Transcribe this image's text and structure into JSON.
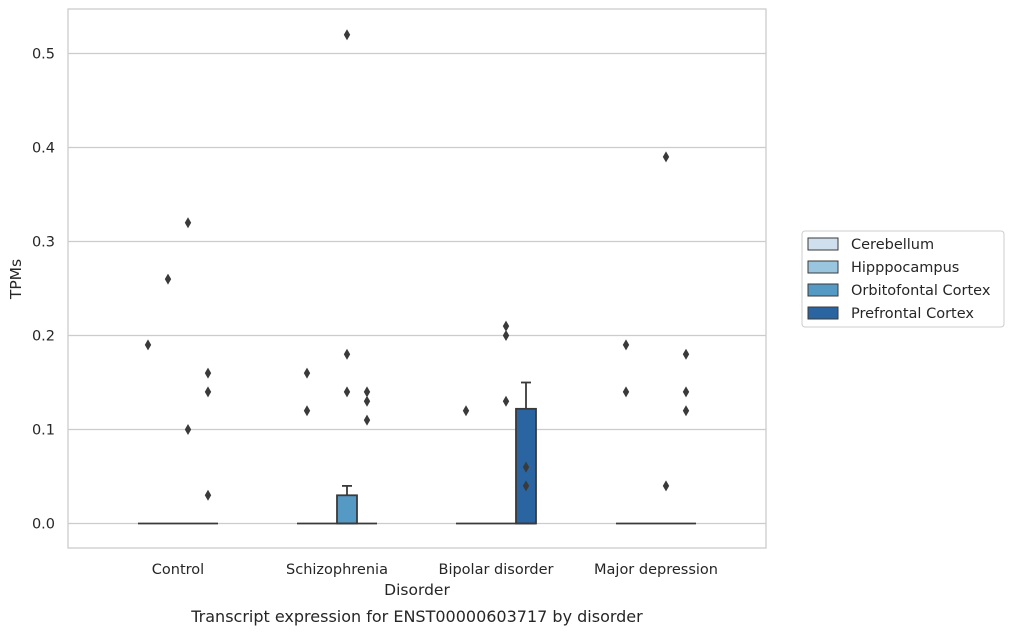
{
  "chart_data": {
    "type": "box",
    "xlabel": "Disorder",
    "ylabel": "TPMs",
    "caption": "Transcript expression for ENST00000603717 by disorder",
    "categories": [
      "Control",
      "Schizophrenia",
      "Bipolar disorder",
      "Major depression"
    ],
    "ylim": [
      -0.025,
      0.545
    ],
    "yticks": [
      0.0,
      0.1,
      0.2,
      0.3,
      0.4,
      0.5
    ],
    "ytick_labels": [
      "0.0",
      "0.1",
      "0.2",
      "0.3",
      "0.4",
      "0.5"
    ],
    "grid": "horizontal",
    "legend_position": "right",
    "series": [
      {
        "name": "Cerebellum",
        "color": "#cfdfee",
        "boxes": [
          {
            "q1": 0,
            "median": 0,
            "q3": 0,
            "whisker_low": 0,
            "whisker_high": 0,
            "outliers": [
              0.19
            ]
          },
          {
            "q1": 0,
            "median": 0,
            "q3": 0,
            "whisker_low": 0,
            "whisker_high": 0,
            "outliers": [
              0.16,
              0.12
            ]
          },
          {
            "q1": 0,
            "median": 0,
            "q3": 0,
            "whisker_low": 0,
            "whisker_high": 0,
            "outliers": [
              0.12
            ]
          },
          {
            "q1": 0,
            "median": 0,
            "q3": 0,
            "whisker_low": 0,
            "whisker_high": 0,
            "outliers": [
              0.19,
              0.14
            ]
          }
        ]
      },
      {
        "name": "Hipppocampus",
        "color": "#9ac5df",
        "boxes": [
          {
            "q1": 0,
            "median": 0,
            "q3": 0,
            "whisker_low": 0,
            "whisker_high": 0,
            "outliers": [
              0.26
            ]
          },
          {
            "q1": 0,
            "median": 0,
            "q3": 0,
            "whisker_low": 0,
            "whisker_high": 0,
            "outliers": []
          },
          {
            "q1": 0,
            "median": 0,
            "q3": 0,
            "whisker_low": 0,
            "whisker_high": 0,
            "outliers": []
          },
          {
            "q1": 0,
            "median": 0,
            "q3": 0,
            "whisker_low": 0,
            "whisker_high": 0,
            "outliers": []
          }
        ]
      },
      {
        "name": "Orbitofontal Cortex",
        "color": "#5599c5",
        "boxes": [
          {
            "q1": 0,
            "median": 0,
            "q3": 0,
            "whisker_low": 0,
            "whisker_high": 0,
            "outliers": [
              0.32,
              0.1
            ]
          },
          {
            "q1": 0,
            "median": 0,
            "q3": 0.03,
            "whisker_low": 0,
            "whisker_high": 0.04,
            "outliers": [
              0.52,
              0.18,
              0.14
            ]
          },
          {
            "q1": 0,
            "median": 0,
            "q3": 0,
            "whisker_low": 0,
            "whisker_high": 0,
            "outliers": [
              0.21,
              0.2,
              0.13
            ]
          },
          {
            "q1": 0,
            "median": 0,
            "q3": 0,
            "whisker_low": 0,
            "whisker_high": 0,
            "outliers": [
              0.39,
              0.04
            ]
          }
        ]
      },
      {
        "name": "Prefrontal Cortex",
        "color": "#2a65a2",
        "boxes": [
          {
            "q1": 0,
            "median": 0,
            "q3": 0,
            "whisker_low": 0,
            "whisker_high": 0,
            "outliers": [
              0.16,
              0.14,
              0.03
            ]
          },
          {
            "q1": 0,
            "median": 0,
            "q3": 0,
            "whisker_low": 0,
            "whisker_high": 0,
            "outliers": [
              0.14,
              0.13,
              0.11
            ]
          },
          {
            "q1": 0,
            "median": 0,
            "q3": 0.122,
            "whisker_low": 0,
            "whisker_high": 0.15,
            "outliers": [
              0.06,
              0.04
            ]
          },
          {
            "q1": 0,
            "median": 0,
            "q3": 0,
            "whisker_low": 0,
            "whisker_high": 0,
            "outliers": [
              0.18,
              0.14,
              0.12
            ]
          }
        ]
      }
    ]
  }
}
